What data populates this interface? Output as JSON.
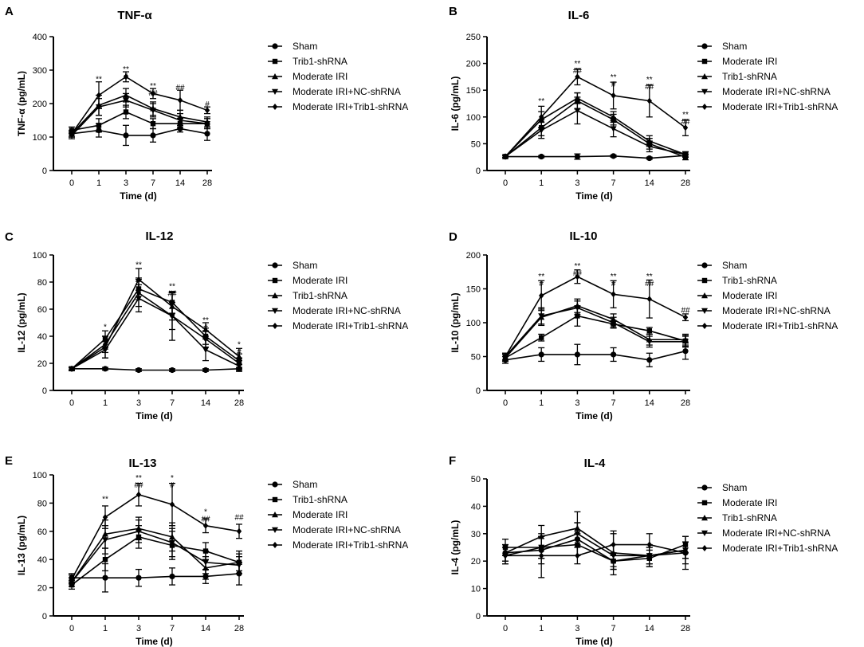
{
  "chart_data": [
    {
      "letter": "A",
      "type": "line",
      "title": "TNF-α",
      "xlabel": "Time (d)",
      "ylabel": "TNF-α (pg/mL)",
      "ylim": [
        0,
        400
      ],
      "yticks": [
        0,
        100,
        200,
        300,
        400
      ],
      "categories": [
        "0",
        "1",
        "3",
        "7",
        "14",
        "28"
      ],
      "series": [
        {
          "name": "Sham",
          "marker": "circle",
          "values": [
            110,
            120,
            105,
            105,
            125,
            110
          ],
          "errors": [
            10,
            20,
            30,
            20,
            10,
            20
          ]
        },
        {
          "name": "Trib1-shRNA",
          "marker": "square",
          "values": [
            120,
            135,
            175,
            140,
            140,
            140
          ],
          "errors": [
            10,
            20,
            20,
            15,
            15,
            15
          ]
        },
        {
          "name": "Moderate IRI",
          "marker": "triangle-up",
          "values": [
            110,
            195,
            225,
            185,
            160,
            145
          ],
          "errors": [
            10,
            30,
            20,
            20,
            20,
            15
          ]
        },
        {
          "name": "Moderate IRI+NC-shRNA",
          "marker": "triangle-down",
          "values": [
            105,
            190,
            210,
            180,
            150,
            140
          ],
          "errors": [
            10,
            25,
            20,
            20,
            20,
            15
          ]
        },
        {
          "name": "Moderate IRI+Trib1-shRNA",
          "marker": "diamond",
          "values": [
            110,
            225,
            280,
            230,
            210,
            180
          ],
          "errors": [
            10,
            40,
            15,
            15,
            30,
            10
          ]
        }
      ],
      "annotations": [
        {
          "x": "1",
          "y": 265,
          "lines": [
            "**"
          ]
        },
        {
          "x": "3",
          "y": 295,
          "lines": [
            "**",
            "#"
          ]
        },
        {
          "x": "7",
          "y": 245,
          "lines": [
            "**",
            "##"
          ]
        },
        {
          "x": "14",
          "y": 240,
          "lines": [
            "##"
          ]
        },
        {
          "x": "28",
          "y": 190,
          "lines": [
            "#"
          ]
        }
      ]
    },
    {
      "letter": "B",
      "type": "line",
      "title": "IL-6",
      "xlabel": "Time (d)",
      "ylabel": "IL-6 (pg/mL)",
      "ylim": [
        0,
        250
      ],
      "yticks": [
        0,
        50,
        100,
        150,
        200,
        250
      ],
      "categories": [
        "0",
        "1",
        "3",
        "7",
        "14",
        "28"
      ],
      "series": [
        {
          "name": "Sham",
          "marker": "circle",
          "values": [
            26,
            26,
            26,
            27,
            23,
            28
          ],
          "errors": [
            2,
            2,
            5,
            2,
            2,
            3
          ]
        },
        {
          "name": "Moderate IRI",
          "marker": "square",
          "values": [
            26,
            80,
            130,
            95,
            50,
            25
          ],
          "errors": [
            2,
            15,
            15,
            10,
            10,
            5
          ]
        },
        {
          "name": "Trib1-shRNA",
          "marker": "triangle-up",
          "values": [
            26,
            95,
            135,
            100,
            55,
            30
          ],
          "errors": [
            2,
            15,
            10,
            10,
            10,
            5
          ]
        },
        {
          "name": "Moderate IRI+NC-shRNA",
          "marker": "triangle-down",
          "values": [
            26,
            75,
            112,
            78,
            45,
            30
          ],
          "errors": [
            2,
            15,
            25,
            15,
            10,
            5
          ]
        },
        {
          "name": "Moderate IRI+Trib1-shRNA",
          "marker": "diamond",
          "values": [
            26,
            100,
            175,
            140,
            130,
            80
          ],
          "errors": [
            2,
            20,
            15,
            25,
            30,
            15
          ]
        }
      ],
      "annotations": [
        {
          "x": "1",
          "y": 125,
          "lines": [
            "**"
          ]
        },
        {
          "x": "3",
          "y": 195,
          "lines": [
            "**",
            "##"
          ]
        },
        {
          "x": "7",
          "y": 170,
          "lines": [
            "**",
            "#"
          ]
        },
        {
          "x": "14",
          "y": 165,
          "lines": [
            "**",
            "##"
          ]
        },
        {
          "x": "28",
          "y": 100,
          "lines": [
            "**",
            "##"
          ]
        }
      ]
    },
    {
      "letter": "C",
      "type": "line",
      "title": "IL-12",
      "xlabel": "Time (d)",
      "ylabel": "IL-12 (pg/mL)",
      "ylim": [
        0,
        100
      ],
      "yticks": [
        0,
        20,
        40,
        60,
        80,
        100
      ],
      "categories": [
        "0",
        "1",
        "3",
        "7",
        "14",
        "28"
      ],
      "series": [
        {
          "name": "Sham",
          "marker": "circle",
          "values": [
            16,
            16,
            15,
            15,
            15,
            16
          ],
          "errors": [
            1,
            1,
            1,
            1,
            1,
            1
          ]
        },
        {
          "name": "Moderate IRI",
          "marker": "square",
          "values": [
            16,
            38,
            75,
            65,
            40,
            22
          ],
          "errors": [
            1,
            6,
            8,
            8,
            6,
            5
          ]
        },
        {
          "name": "Trib1-shRNA",
          "marker": "triangle-up",
          "values": [
            16,
            32,
            82,
            62,
            45,
            25
          ],
          "errors": [
            1,
            8,
            8,
            10,
            5,
            6
          ]
        },
        {
          "name": "Moderate IRI+NC-shRNA",
          "marker": "triangle-down",
          "values": [
            16,
            30,
            68,
            55,
            30,
            18
          ],
          "errors": [
            1,
            6,
            10,
            18,
            8,
            4
          ]
        },
        {
          "name": "Moderate IRI+Trib1-shRNA",
          "marker": "diamond",
          "values": [
            16,
            34,
            72,
            55,
            38,
            20
          ],
          "errors": [
            1,
            6,
            10,
            10,
            6,
            4
          ]
        }
      ],
      "annotations": [
        {
          "x": "1",
          "y": 45,
          "lines": [
            "*"
          ]
        },
        {
          "x": "3",
          "y": 91,
          "lines": [
            "**"
          ]
        },
        {
          "x": "7",
          "y": 75,
          "lines": [
            "**",
            "##"
          ]
        },
        {
          "x": "14",
          "y": 50,
          "lines": [
            "**",
            "#"
          ]
        },
        {
          "x": "28",
          "y": 32,
          "lines": [
            "*",
            "#"
          ]
        }
      ]
    },
    {
      "letter": "D",
      "type": "line",
      "title": "IL-10",
      "xlabel": "Time (d)",
      "ylabel": "IL-10 (pg/mL)",
      "ylim": [
        0,
        200
      ],
      "yticks": [
        0,
        50,
        100,
        150,
        200
      ],
      "categories": [
        "0",
        "1",
        "3",
        "7",
        "14",
        "28"
      ],
      "series": [
        {
          "name": "Sham",
          "marker": "circle",
          "values": [
            45,
            53,
            53,
            53,
            45,
            58
          ],
          "errors": [
            5,
            10,
            15,
            10,
            10,
            12
          ]
        },
        {
          "name": "Trib1-shRNA",
          "marker": "square",
          "values": [
            48,
            78,
            110,
            98,
            88,
            73
          ],
          "errors": [
            5,
            5,
            15,
            5,
            5,
            8
          ]
        },
        {
          "name": "Moderate IRI",
          "marker": "triangle-up",
          "values": [
            48,
            108,
            125,
            105,
            75,
            75
          ],
          "errors": [
            5,
            12,
            10,
            8,
            8,
            8
          ]
        },
        {
          "name": "Moderate IRI+NC-shRNA",
          "marker": "triangle-down",
          "values": [
            50,
            110,
            122,
            100,
            72,
            72
          ],
          "errors": [
            5,
            12,
            10,
            8,
            8,
            8
          ]
        },
        {
          "name": "Moderate IRI+Trib1-shRNA",
          "marker": "diamond",
          "values": [
            50,
            140,
            168,
            142,
            135,
            108
          ],
          "errors": [
            5,
            22,
            10,
            20,
            28,
            5
          ]
        }
      ],
      "annotations": [
        {
          "x": "1",
          "y": 165,
          "lines": [
            "**",
            "#"
          ]
        },
        {
          "x": "3",
          "y": 180,
          "lines": [
            "**",
            "##"
          ]
        },
        {
          "x": "7",
          "y": 165,
          "lines": [
            "**",
            "#"
          ]
        },
        {
          "x": "14",
          "y": 165,
          "lines": [
            "**",
            "##"
          ]
        },
        {
          "x": "28",
          "y": 115,
          "lines": [
            "##"
          ]
        }
      ]
    },
    {
      "letter": "E",
      "type": "line",
      "title": "IL-13",
      "xlabel": "Time (d)",
      "ylabel": "IL-13 (pg/mL)",
      "ylim": [
        0,
        100
      ],
      "yticks": [
        0,
        20,
        40,
        60,
        80,
        100
      ],
      "categories": [
        "0",
        "1",
        "3",
        "7",
        "14",
        "28"
      ],
      "series": [
        {
          "name": "Sham",
          "marker": "circle",
          "values": [
            27,
            27,
            27,
            28,
            28,
            30
          ],
          "errors": [
            3,
            10,
            6,
            6,
            5,
            8
          ]
        },
        {
          "name": "Trib1-shRNA",
          "marker": "square",
          "values": [
            22,
            40,
            56,
            50,
            46,
            38
          ],
          "errors": [
            3,
            8,
            8,
            10,
            6,
            8
          ]
        },
        {
          "name": "Moderate IRI",
          "marker": "triangle-up",
          "values": [
            24,
            58,
            62,
            56,
            34,
            38
          ],
          "errors": [
            3,
            10,
            8,
            10,
            8,
            6
          ]
        },
        {
          "name": "Moderate IRI+NC-shRNA",
          "marker": "triangle-down",
          "values": [
            24,
            54,
            60,
            52,
            38,
            36
          ],
          "errors": [
            3,
            10,
            8,
            10,
            8,
            6
          ]
        },
        {
          "name": "Moderate IRI+Trib1-shRNA",
          "marker": "diamond",
          "values": [
            26,
            70,
            86,
            79,
            64,
            60
          ],
          "errors": [
            3,
            8,
            8,
            15,
            5,
            5
          ]
        }
      ],
      "annotations": [
        {
          "x": "1",
          "y": 81,
          "lines": [
            "**"
          ]
        },
        {
          "x": "3",
          "y": 96,
          "lines": [
            "**",
            "##"
          ]
        },
        {
          "x": "7",
          "y": 96,
          "lines": [
            "*",
            "#"
          ]
        },
        {
          "x": "14",
          "y": 72,
          "lines": [
            "*",
            "##"
          ]
        },
        {
          "x": "28",
          "y": 68,
          "lines": [
            "##"
          ]
        }
      ]
    },
    {
      "letter": "F",
      "type": "line",
      "title": "IL-4",
      "xlabel": "Time (d)",
      "ylabel": "IL-4 (pg/mL)",
      "ylim": [
        0,
        50
      ],
      "yticks": [
        0,
        10,
        20,
        30,
        40,
        50
      ],
      "categories": [
        "0",
        "1",
        "3",
        "7",
        "14",
        "28"
      ],
      "series": [
        {
          "name": "Sham",
          "marker": "circle",
          "values": [
            23,
            24,
            28,
            20,
            22,
            23
          ],
          "errors": [
            3,
            5,
            6,
            3,
            3,
            4
          ]
        },
        {
          "name": "Moderate IRI",
          "marker": "square",
          "values": [
            25,
            25,
            26,
            20,
            21,
            26
          ],
          "errors": [
            3,
            4,
            4,
            3,
            3,
            3
          ]
        },
        {
          "name": "Trib1-shRNA",
          "marker": "triangle-up",
          "values": [
            23,
            29,
            32,
            23,
            22,
            24
          ],
          "errors": [
            3,
            4,
            6,
            8,
            4,
            3
          ]
        },
        {
          "name": "Moderate IRI+NC-shRNA",
          "marker": "triangle-down",
          "values": [
            22,
            25,
            30,
            22,
            22,
            24
          ],
          "errors": [
            3,
            4,
            4,
            4,
            3,
            3
          ]
        },
        {
          "name": "Moderate IRI+Trib1-shRNA",
          "marker": "diamond",
          "values": [
            22,
            22,
            22,
            26,
            26,
            23
          ],
          "errors": [
            3,
            8,
            3,
            4,
            4,
            6
          ]
        }
      ],
      "annotations": []
    }
  ]
}
